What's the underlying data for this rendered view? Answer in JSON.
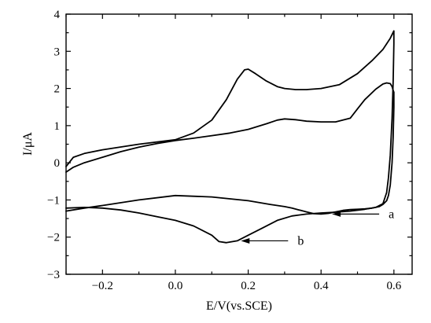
{
  "chart_data": {
    "type": "line",
    "title": "",
    "xlabel": "E/V(vs.SCE)",
    "ylabel": "I/μA",
    "xlim": [
      -0.3,
      0.65
    ],
    "ylim": [
      -3,
      4
    ],
    "x_ticks": [
      "-0.2",
      "0.0",
      "0.2",
      "0.4",
      "0.6"
    ],
    "y_ticks": [
      "4",
      "3",
      "2",
      "1",
      "0",
      "-1",
      "-2",
      "-3"
    ],
    "grid": false,
    "legend": "none",
    "annotations": [
      {
        "label": "a",
        "points_to_series": "a",
        "x": 0.43,
        "y": -1.38
      },
      {
        "label": "b",
        "points_to_series": "b",
        "x": 0.18,
        "y": -2.1
      }
    ],
    "series": [
      {
        "name": "a",
        "x": [
          -0.3,
          -0.28,
          -0.25,
          -0.2,
          -0.15,
          -0.1,
          -0.05,
          0.0,
          0.05,
          0.1,
          0.15,
          0.2,
          0.25,
          0.28,
          0.3,
          0.33,
          0.36,
          0.4,
          0.44,
          0.48,
          0.5,
          0.52,
          0.55,
          0.57,
          0.58,
          0.59,
          0.595,
          0.598,
          0.6,
          0.6,
          0.598,
          0.595,
          0.59,
          0.585,
          0.58,
          0.57,
          0.56,
          0.54,
          0.52,
          0.5,
          0.48,
          0.46,
          0.44,
          0.42,
          0.4,
          0.38,
          0.36,
          0.34,
          0.32,
          0.3,
          0.26,
          0.2,
          0.1,
          0.0,
          -0.1,
          -0.2,
          -0.25,
          -0.3
        ],
        "y": [
          -0.25,
          -0.12,
          0.0,
          0.15,
          0.3,
          0.42,
          0.52,
          0.6,
          0.66,
          0.73,
          0.8,
          0.9,
          1.05,
          1.15,
          1.18,
          1.16,
          1.12,
          1.1,
          1.1,
          1.2,
          1.45,
          1.7,
          1.98,
          2.12,
          2.15,
          2.13,
          2.05,
          1.95,
          1.9,
          1.5,
          0.7,
          0.0,
          -0.6,
          -0.88,
          -1.02,
          -1.12,
          -1.18,
          -1.22,
          -1.24,
          -1.25,
          -1.26,
          -1.28,
          -1.32,
          -1.36,
          -1.38,
          -1.37,
          -1.32,
          -1.27,
          -1.22,
          -1.18,
          -1.12,
          -1.02,
          -0.92,
          -0.88,
          -1.0,
          -1.15,
          -1.22,
          -1.3
        ]
      },
      {
        "name": "b",
        "x": [
          -0.3,
          -0.28,
          -0.25,
          -0.2,
          -0.1,
          0.0,
          0.05,
          0.1,
          0.14,
          0.17,
          0.19,
          0.2,
          0.22,
          0.25,
          0.28,
          0.3,
          0.33,
          0.36,
          0.4,
          0.45,
          0.5,
          0.54,
          0.57,
          0.59,
          0.6,
          0.6,
          0.598,
          0.595,
          0.59,
          0.585,
          0.58,
          0.57,
          0.55,
          0.52,
          0.48,
          0.44,
          0.4,
          0.36,
          0.32,
          0.28,
          0.24,
          0.2,
          0.17,
          0.14,
          0.12,
          0.1,
          0.05,
          0.0,
          -0.05,
          -0.1,
          -0.15,
          -0.2,
          -0.25,
          -0.3
        ],
        "y": [
          -0.1,
          0.15,
          0.25,
          0.35,
          0.5,
          0.62,
          0.8,
          1.15,
          1.7,
          2.25,
          2.5,
          2.52,
          2.4,
          2.2,
          2.05,
          2.0,
          1.97,
          1.97,
          2.0,
          2.1,
          2.4,
          2.75,
          3.05,
          3.35,
          3.55,
          3.2,
          2.2,
          1.2,
          0.2,
          -0.4,
          -0.8,
          -1.1,
          -1.2,
          -1.25,
          -1.3,
          -1.33,
          -1.35,
          -1.38,
          -1.43,
          -1.55,
          -1.75,
          -1.95,
          -2.1,
          -2.15,
          -2.12,
          -1.95,
          -1.7,
          -1.55,
          -1.45,
          -1.35,
          -1.27,
          -1.22,
          -1.2,
          -1.22
        ]
      }
    ]
  }
}
